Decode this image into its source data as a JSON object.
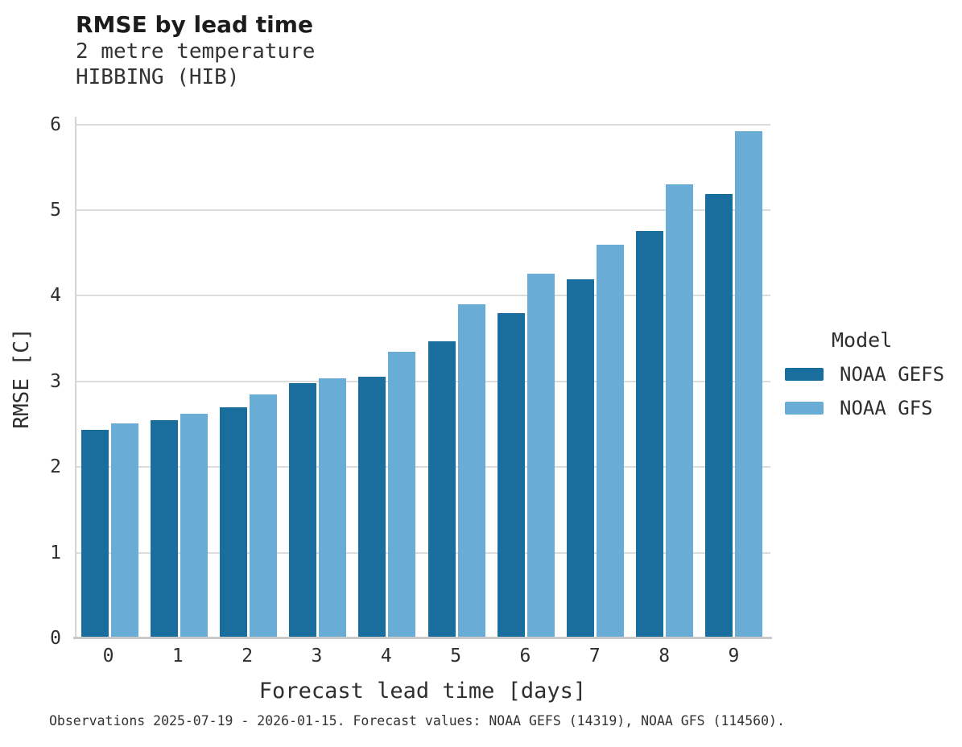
{
  "header": {
    "title": "RMSE by lead time",
    "subtitle_line1": "2 metre temperature",
    "subtitle_line2": "HIBBING (HIB)"
  },
  "chart_data": {
    "type": "bar",
    "title": "RMSE by lead time",
    "subtitle": [
      "2 metre temperature",
      "HIBBING (HIB)"
    ],
    "categories": [
      "0",
      "1",
      "2",
      "3",
      "4",
      "5",
      "6",
      "7",
      "8",
      "9"
    ],
    "series": [
      {
        "name": "NOAA GEFS",
        "color": "#1A6E9E",
        "values": [
          2.43,
          2.55,
          2.7,
          2.98,
          3.05,
          3.47,
          3.8,
          4.19,
          4.76,
          5.19
        ]
      },
      {
        "name": "NOAA GFS",
        "color": "#69ACD6",
        "values": [
          2.51,
          2.62,
          2.85,
          3.04,
          3.35,
          3.9,
          4.26,
          4.6,
          5.3,
          5.92
        ]
      }
    ],
    "xlabel": "Forecast lead time [days]",
    "ylabel": "RMSE [C]",
    "ylim": [
      0,
      6.09
    ],
    "yticks": [
      0,
      1,
      2,
      3,
      4,
      5,
      6
    ],
    "legend_title": "Model",
    "legend_position": "right",
    "grid": true
  },
  "colors": {
    "gridline": "#DCDCDC",
    "axis_line": "#C9C9C9",
    "noaa_gefs": "#1A6E9E",
    "noaa_gfs": "#69ACD6"
  },
  "footer": {
    "text": "Observations 2025-07-19 - 2026-01-15. Forecast values: NOAA GEFS (14319), NOAA GFS (114560)."
  }
}
